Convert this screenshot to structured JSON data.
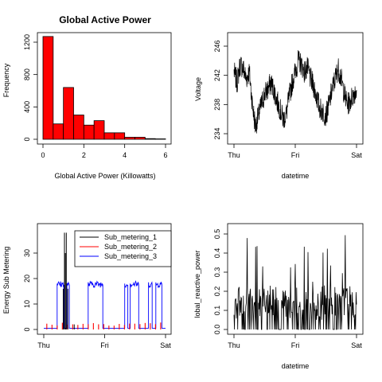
{
  "chart_data": [
    {
      "type": "bar",
      "title": "Global Active Power",
      "xlabel": "Global Active Power (Killowatts)",
      "ylabel": "Frequency",
      "bar_color": "#ff0000",
      "bin_edges": [
        0,
        0.5,
        1,
        1.5,
        2,
        2.5,
        3,
        3.5,
        4,
        4.5,
        5,
        5.5,
        6
      ],
      "values": [
        1270,
        190,
        640,
        300,
        175,
        230,
        80,
        80,
        25,
        25,
        8,
        5
      ],
      "xlim": [
        0,
        6
      ],
      "ylim": [
        0,
        1200
      ],
      "x_ticks": [
        "0",
        "2",
        "4",
        "6"
      ],
      "y_ticks": [
        "0",
        "400",
        "800",
        "1200"
      ]
    },
    {
      "type": "line",
      "title": "",
      "xlabel": "datetime",
      "ylabel": "Voltage",
      "line_color": "#000000",
      "x_ticks": [
        "Thu",
        "Fri",
        "Sat"
      ],
      "y_ticks": [
        "234",
        "238",
        "242",
        "246"
      ],
      "ylim": [
        234,
        246
      ],
      "x": [
        0,
        0.05,
        0.1,
        0.15,
        0.2,
        0.25,
        0.3,
        0.35,
        0.4,
        0.45,
        0.5,
        0.55,
        0.6,
        0.65,
        0.7,
        0.75,
        0.8,
        0.85,
        0.9,
        0.95,
        1.0,
        1.05,
        1.1,
        1.15,
        1.2,
        1.25,
        1.3,
        1.35,
        1.4,
        1.45,
        1.5,
        1.55,
        1.6,
        1.65,
        1.7,
        1.75,
        1.8,
        1.85,
        1.9,
        1.95,
        2.0
      ],
      "values": [
        242.5,
        241.0,
        243.5,
        243.0,
        241.5,
        242.5,
        238.0,
        235.0,
        236.5,
        238.0,
        239.5,
        240.0,
        241.0,
        240.0,
        238.5,
        237.5,
        236.0,
        236.5,
        239.0,
        241.0,
        242.5,
        244.0,
        243.5,
        242.5,
        243.0,
        241.5,
        240.5,
        239.0,
        237.5,
        237.0,
        236.5,
        238.0,
        240.0,
        241.5,
        243.0,
        241.5,
        239.5,
        238.0,
        238.5,
        239.5,
        240.0
      ]
    },
    {
      "type": "line",
      "title": "",
      "xlabel": "",
      "ylabel": "Energy Sub Metering",
      "x_ticks": [
        "Thu",
        "Fri",
        "Sat"
      ],
      "y_ticks": [
        "0",
        "10",
        "20",
        "30"
      ],
      "ylim": [
        0,
        40
      ],
      "legend": "top-right",
      "series": [
        {
          "name": "Sub_metering_1",
          "color": "#000000"
        },
        {
          "name": "Sub_metering_2",
          "color": "#ff0000"
        },
        {
          "name": "Sub_metering_3",
          "color": "#0000ff"
        }
      ]
    },
    {
      "type": "bar",
      "title": "",
      "xlabel": "datetime",
      "ylabel": "lobal_reactive_power",
      "bar_color": "#000000",
      "x_ticks": [
        "Thu",
        "Fri",
        "Sat"
      ],
      "y_ticks": [
        "0.0",
        "0.1",
        "0.2",
        "0.3",
        "0.4",
        "0.5"
      ],
      "ylim": [
        0,
        0.5
      ]
    }
  ]
}
